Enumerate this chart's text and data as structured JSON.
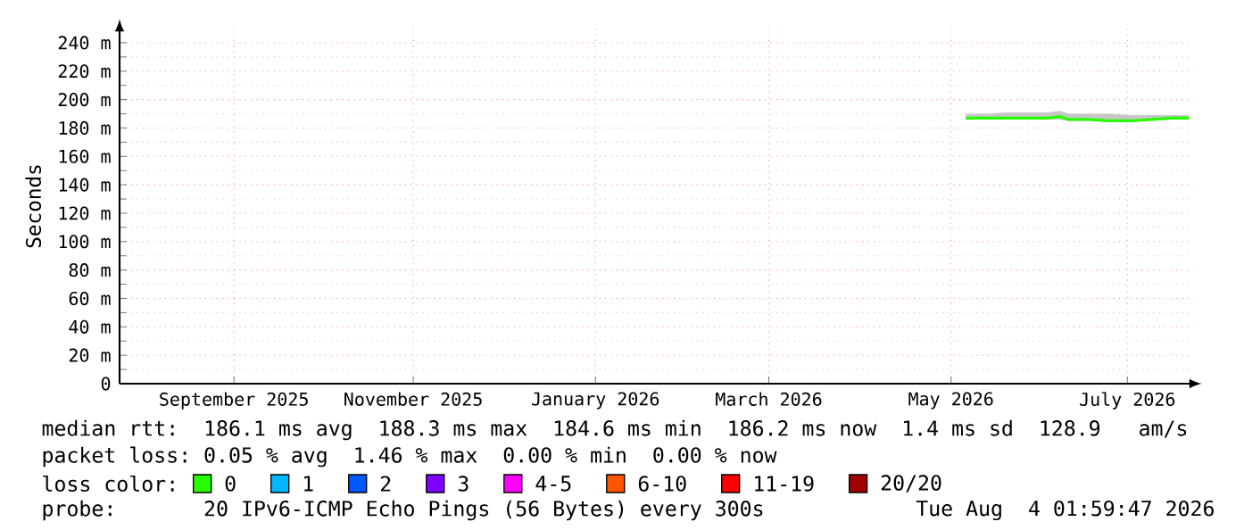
{
  "chart_data": {
    "type": "line",
    "ylabel": "Seconds",
    "x": [
      "2026-05-19",
      "2026-05-26",
      "2026-06-02",
      "2026-06-09",
      "2026-06-16",
      "2026-06-20",
      "2026-06-23",
      "2026-06-30",
      "2026-07-07",
      "2026-07-14",
      "2026-07-21",
      "2026-07-28",
      "2026-08-03"
    ],
    "series": [
      {
        "name": "0",
        "color": "#26ff00",
        "values": [
          187,
          187,
          187,
          187,
          187,
          188,
          186,
          186,
          185,
          185,
          186,
          187,
          187
        ],
        "lower": [
          186,
          186,
          186,
          186,
          186,
          186,
          185,
          185,
          184,
          184,
          185,
          186,
          186
        ],
        "upper": [
          190,
          190,
          191,
          191,
          191,
          192,
          190,
          190,
          190,
          189,
          189,
          189,
          189
        ]
      },
      {
        "name": "1",
        "color": "#00b8ff",
        "values": [
          null,
          null,
          null,
          null,
          null,
          null,
          null,
          null,
          null,
          null,
          null,
          null,
          null
        ]
      },
      {
        "name": "2",
        "color": "#0059ff",
        "values": [
          null,
          null,
          null,
          null,
          null,
          null,
          null,
          null,
          null,
          null,
          null,
          null,
          null
        ]
      },
      {
        "name": "3",
        "color": "#7e00ff",
        "values": [
          null,
          null,
          null,
          null,
          null,
          null,
          null,
          null,
          null,
          null,
          null,
          null,
          null
        ]
      },
      {
        "name": "4-5",
        "color": "#ff00ff",
        "values": [
          null,
          null,
          null,
          null,
          null,
          null,
          null,
          null,
          null,
          null,
          null,
          null,
          null
        ]
      },
      {
        "name": "6-10",
        "color": "#ff5500",
        "values": [
          null,
          null,
          null,
          null,
          null,
          null,
          null,
          null,
          null,
          null,
          null,
          null,
          null
        ]
      },
      {
        "name": "11-19",
        "color": "#ff0000",
        "values": [
          null,
          null,
          null,
          null,
          null,
          null,
          null,
          null,
          null,
          null,
          null,
          null,
          null
        ]
      },
      {
        "name": "20/20",
        "color": "#a10000",
        "values": [
          null,
          null,
          null,
          null,
          null,
          null,
          null,
          null,
          null,
          null,
          null,
          null,
          null
        ]
      }
    ],
    "xlim": [
      "2025-08-04T02:00",
      "2026-08-04T02:00"
    ],
    "xticks": [
      {
        "value": "2025-09-12",
        "label": "September 2025"
      },
      {
        "value": "2025-11-12",
        "label": "November 2025"
      },
      {
        "value": "2026-01-13",
        "label": "January 2026"
      },
      {
        "value": "2026-03-13",
        "label": "March 2026"
      },
      {
        "value": "2026-05-14",
        "label": "May 2026"
      },
      {
        "value": "2026-07-13",
        "label": "July 2026"
      }
    ],
    "ylim": [
      0,
      250
    ],
    "yticks": [
      {
        "value": 0,
        "label": "0"
      },
      {
        "value": 20,
        "label": "20 m"
      },
      {
        "value": 40,
        "label": "40 m"
      },
      {
        "value": 60,
        "label": "60 m"
      },
      {
        "value": 80,
        "label": "80 m"
      },
      {
        "value": 100,
        "label": "100 m"
      },
      {
        "value": 120,
        "label": "120 m"
      },
      {
        "value": 140,
        "label": "140 m"
      },
      {
        "value": 160,
        "label": "160 m"
      },
      {
        "value": 180,
        "label": "180 m"
      },
      {
        "value": 200,
        "label": "200 m"
      },
      {
        "value": 220,
        "label": "220 m"
      },
      {
        "value": 240,
        "label": "240 m"
      }
    ],
    "grid": true,
    "legend": "bottom",
    "marker": "none",
    "line_style": "solid",
    "annotations": [
      "median rtt:  186.1 ms avg  188.3 ms max  184.6 ms min  186.2 ms now  1.4 ms sd  128.9   am/s",
      "packet loss: 0.05 % avg  1.46 % max  0.00 % min  0.00 % now",
      "loss color:",
      "probe:       20 IPv6-ICMP Echo Pings (56 Bytes) every 300s",
      "Tue Aug  4 01:59:47 2026"
    ]
  }
}
